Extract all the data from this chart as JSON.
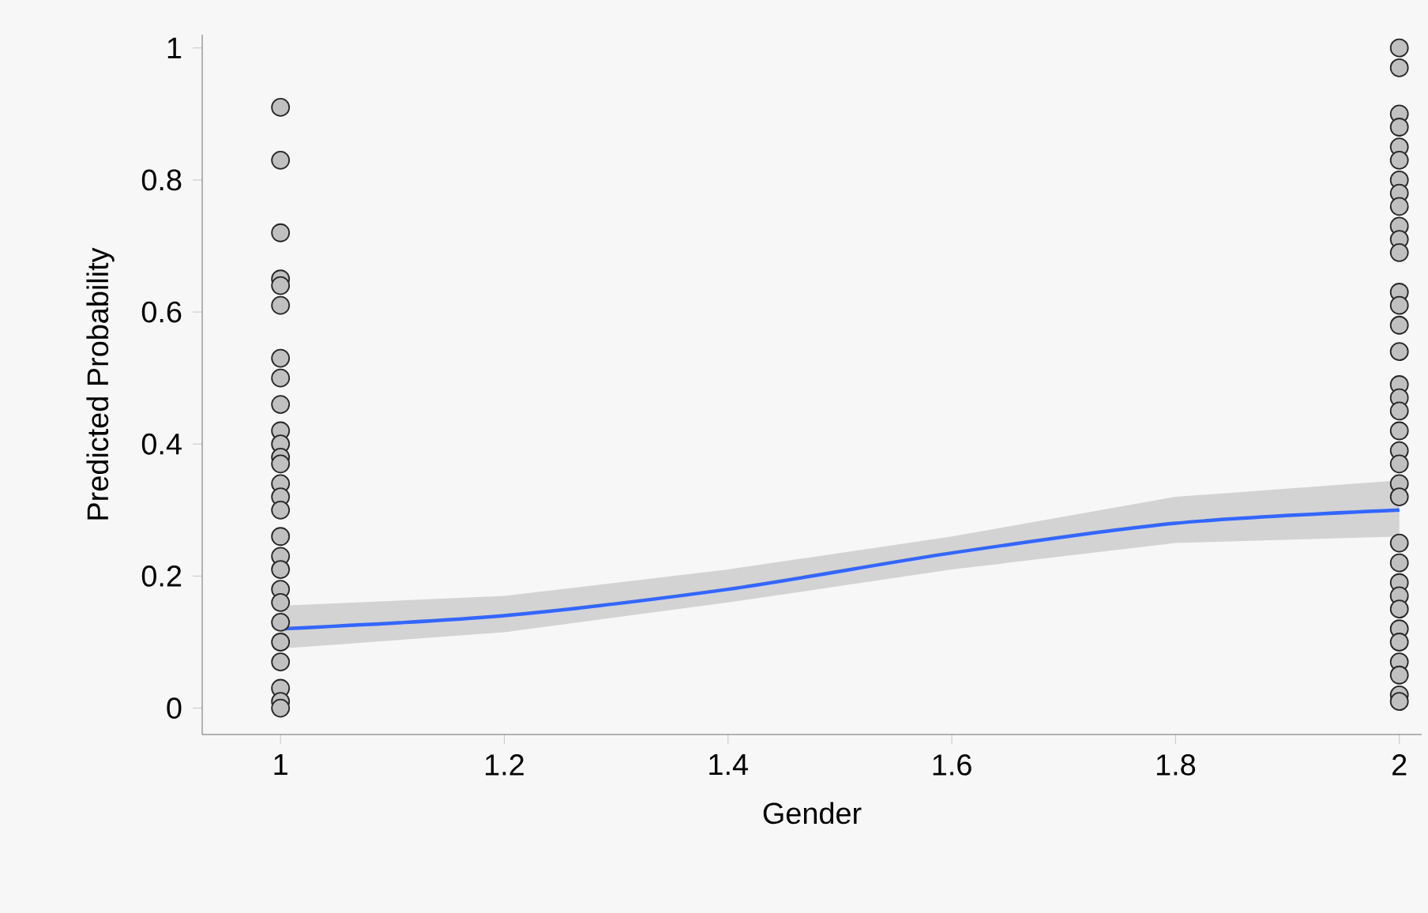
{
  "chart_data": {
    "type": "scatter",
    "xlabel": "Gender",
    "ylabel": "Predicted Probability",
    "xlim": [
      0.93,
      2.02
    ],
    "ylim": [
      -0.04,
      1.02
    ],
    "xticks": [
      1,
      1.2,
      1.4,
      1.6,
      1.8,
      2
    ],
    "yticks": [
      0,
      0.2,
      0.4,
      0.6,
      0.8,
      1
    ],
    "series": [
      {
        "marker": "circle",
        "color": "#c0c0c0",
        "x": [
          1,
          1,
          1,
          1,
          1,
          1,
          1,
          1,
          1,
          1,
          1,
          1,
          1,
          1,
          1,
          1,
          1,
          1,
          1,
          1,
          1,
          1,
          1,
          1,
          1,
          1,
          1,
          2,
          2,
          2,
          2,
          2,
          2,
          2,
          2,
          2,
          2,
          2,
          2,
          2,
          2,
          2,
          2,
          2,
          2,
          2,
          2,
          2,
          2,
          2,
          2,
          2,
          2,
          2,
          2,
          2,
          2,
          2,
          2,
          2,
          2,
          2
        ],
        "values": [
          0.91,
          0.83,
          0.72,
          0.65,
          0.64,
          0.61,
          0.53,
          0.5,
          0.46,
          0.42,
          0.4,
          0.38,
          0.37,
          0.34,
          0.32,
          0.3,
          0.26,
          0.23,
          0.21,
          0.18,
          0.16,
          0.13,
          0.1,
          0.07,
          0.03,
          0.01,
          0.0,
          1.0,
          0.97,
          0.9,
          0.88,
          0.85,
          0.83,
          0.8,
          0.78,
          0.76,
          0.73,
          0.71,
          0.69,
          0.63,
          0.61,
          0.58,
          0.54,
          0.49,
          0.47,
          0.45,
          0.42,
          0.39,
          0.37,
          0.34,
          0.32,
          0.25,
          0.22,
          0.19,
          0.17,
          0.15,
          0.12,
          0.1,
          0.07,
          0.05,
          0.02,
          0.01
        ]
      },
      {
        "type": "line",
        "color": "#3366ff",
        "x": [
          1,
          1.2,
          1.4,
          1.6,
          1.8,
          2
        ],
        "values": [
          0.12,
          0.14,
          0.18,
          0.235,
          0.28,
          0.3
        ],
        "lower": [
          0.09,
          0.115,
          0.16,
          0.21,
          0.25,
          0.26
        ],
        "upper": [
          0.155,
          0.17,
          0.21,
          0.26,
          0.32,
          0.345
        ]
      }
    ]
  }
}
